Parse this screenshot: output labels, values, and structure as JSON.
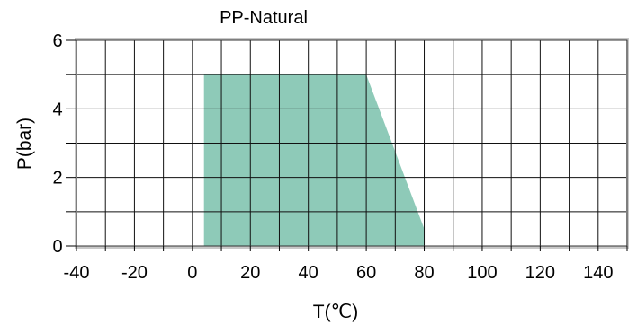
{
  "chart_data": {
    "type": "area",
    "title": "PP-Natural",
    "xlabel": "T(℃)",
    "ylabel": "P(bar)",
    "xlim": [
      -40,
      150
    ],
    "ylim": [
      0,
      6
    ],
    "x_ticks": [
      -40,
      -20,
      0,
      20,
      40,
      60,
      80,
      100,
      120,
      140
    ],
    "y_ticks": [
      0,
      2,
      4,
      6
    ],
    "grid": true,
    "grid_x_step": 10,
    "grid_y_step": 1,
    "series": [
      {
        "x": [
          4,
          4,
          60,
          80,
          80
        ],
        "y": [
          0,
          5,
          5,
          0.5,
          0
        ],
        "color": "#8ecab8"
      }
    ]
  }
}
